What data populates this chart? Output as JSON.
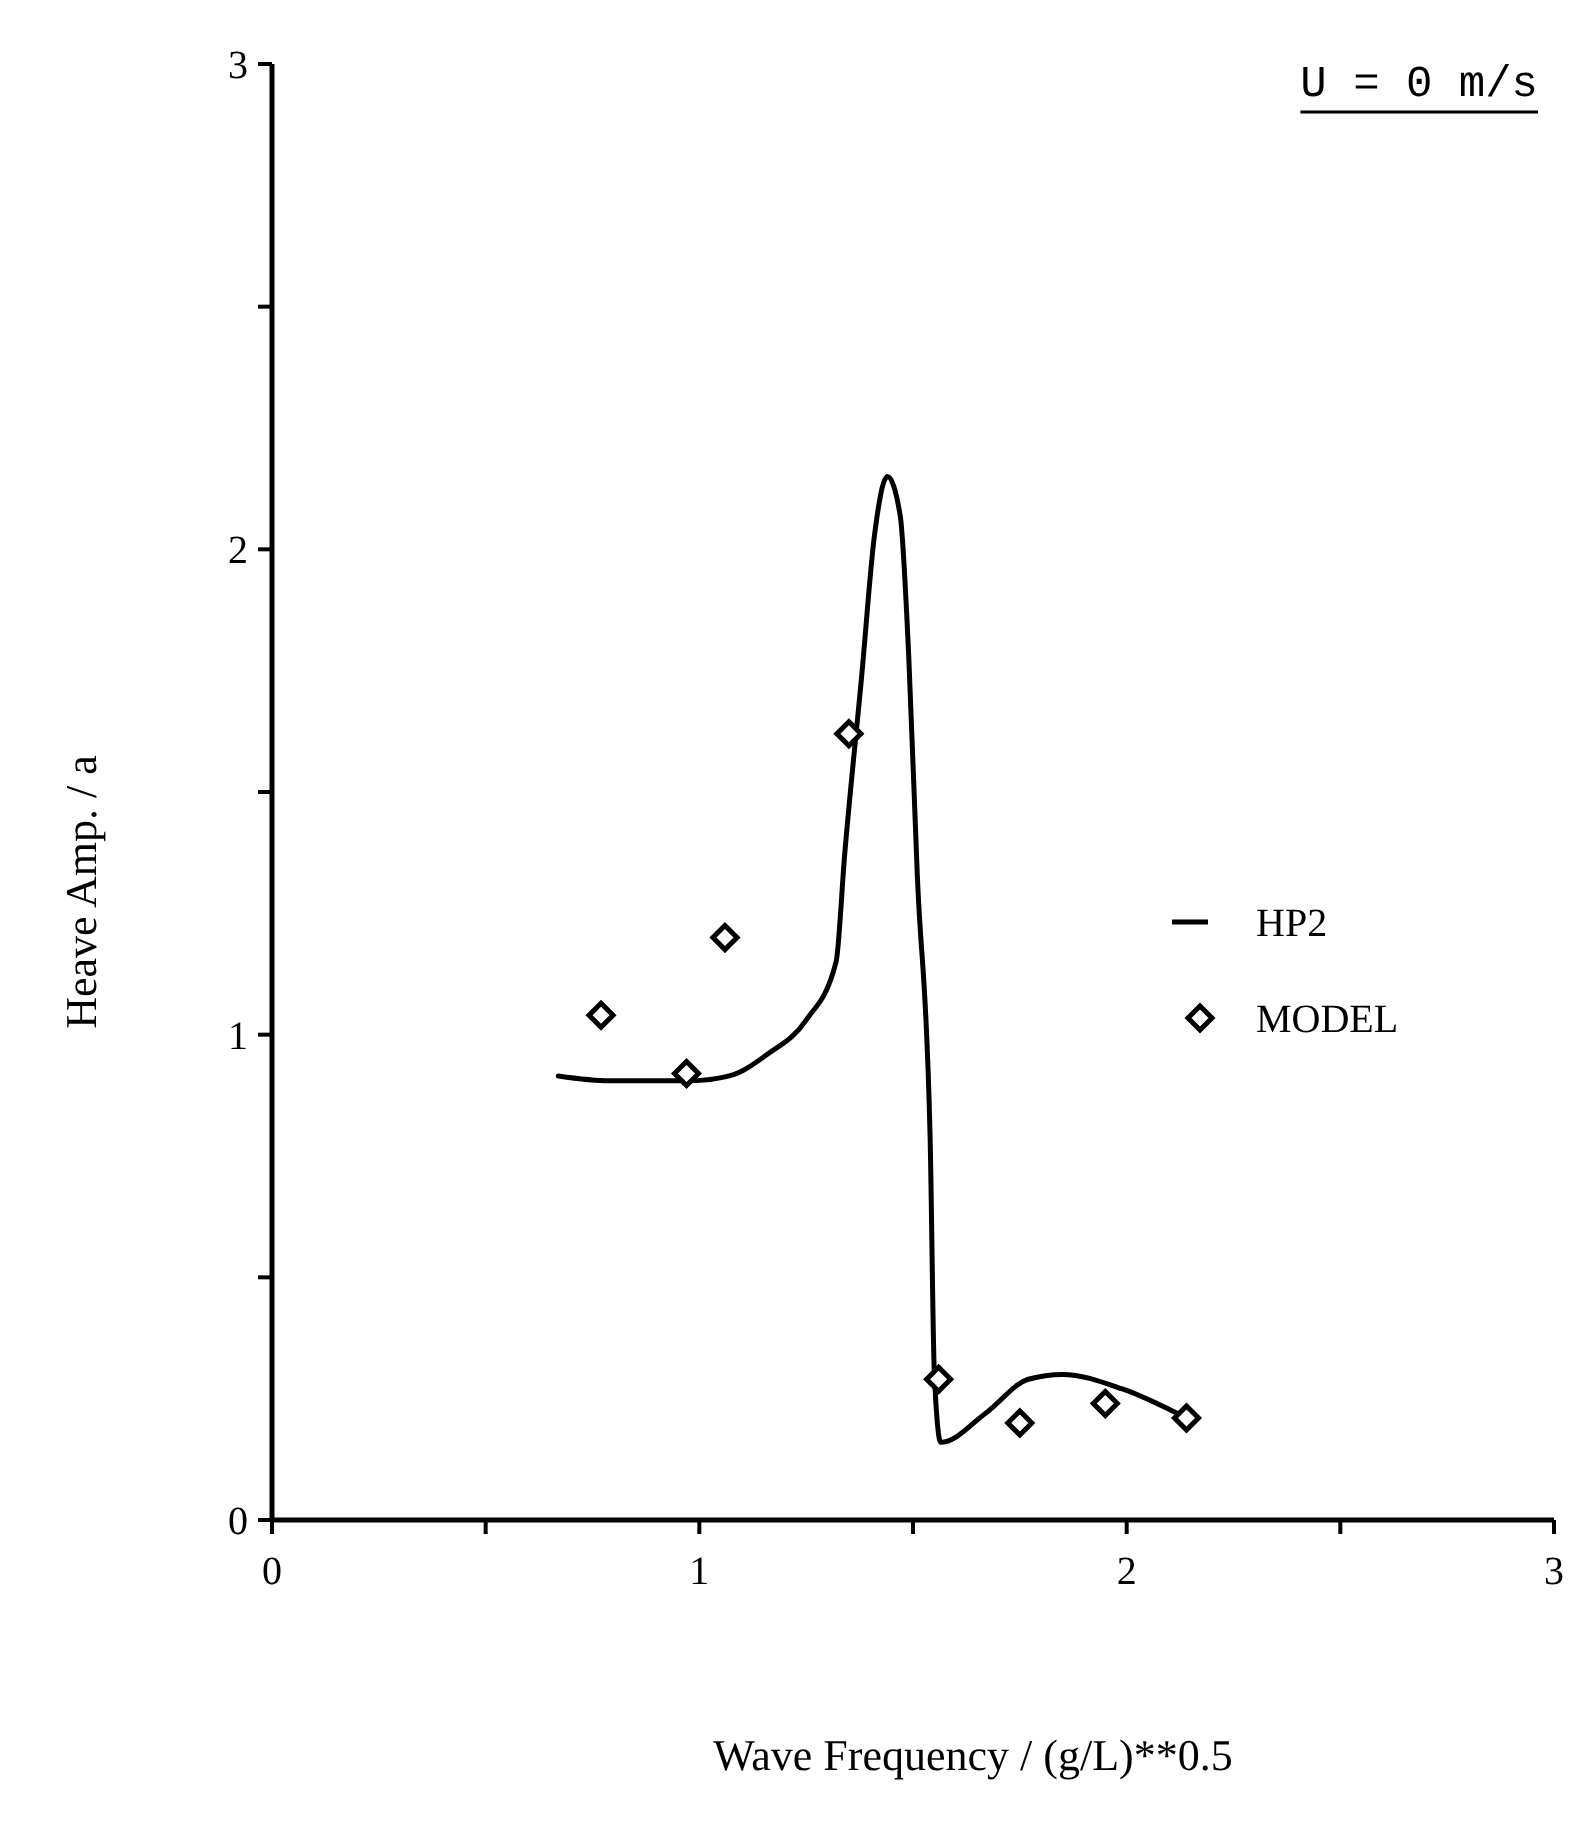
{
  "chart_data": {
    "type": "line",
    "xlabel": "Wave Frequency / (g/L)**0.5",
    "ylabel": "Heave Amp. / a",
    "annotations": [
      "U = 0 m/s"
    ],
    "xlim": [
      0,
      3
    ],
    "ylim": [
      0,
      3
    ],
    "xticks": [
      0,
      {
        "value": 0.5,
        "label": null
      },
      1,
      {
        "value": 1.5,
        "label": null
      },
      2,
      {
        "value": 2.5,
        "label": null
      },
      3
    ],
    "yticks": [
      0,
      {
        "value": 0.5,
        "label": null
      },
      1,
      {
        "value": 1.5,
        "label": null
      },
      2,
      {
        "value": 2.5,
        "label": null
      },
      3
    ],
    "grid": false,
    "legend": "right",
    "series": [
      {
        "name": "HP2",
        "color": "#000000",
        "marker": "none",
        "line_style": "solid",
        "x": [
          0.67,
          0.79,
          0.98,
          1.07,
          1.16,
          1.25,
          1.32,
          1.34,
          1.38,
          1.41,
          1.44,
          1.47,
          1.49,
          1.51,
          1.54,
          1.55,
          1.565,
          1.67,
          1.77,
          1.85,
          1.99,
          2.14
        ],
        "values": [
          0.915,
          0.905,
          0.905,
          0.915,
          0.96,
          1.03,
          1.15,
          1.37,
          1.74,
          2.03,
          2.15,
          2.07,
          1.78,
          1.33,
          0.79,
          0.3,
          0.16,
          0.22,
          0.29,
          0.3,
          0.27,
          0.21
        ]
      },
      {
        "name": "MODEL",
        "type": "scatter",
        "color": "#000000",
        "marker": "diamond",
        "x": [
          0.77,
          0.97,
          1.06,
          1.35,
          1.56,
          1.75,
          1.95,
          2.14
        ],
        "values": [
          1.04,
          0.92,
          1.2,
          1.62,
          0.29,
          0.2,
          0.24,
          0.21
        ]
      }
    ]
  }
}
